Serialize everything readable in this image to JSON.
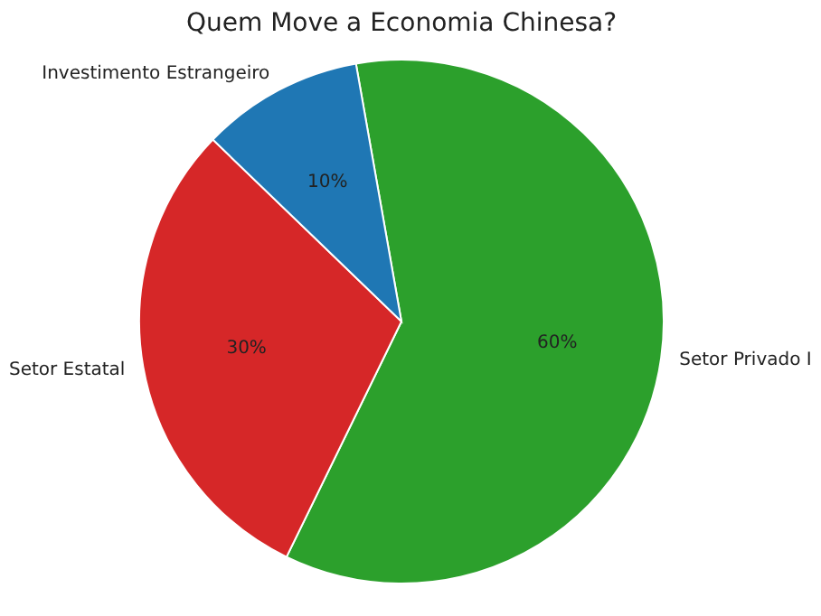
{
  "chart_data": {
    "type": "pie",
    "title": "Quem Move a Economia Chinesa?",
    "categories": [
      "Setor Privado I",
      "Setor Estatal",
      "Investimento Estrangeiro"
    ],
    "values": [
      60,
      30,
      10
    ],
    "colors": [
      "#2ca02c",
      "#d62728",
      "#1f77b4"
    ],
    "value_labels": [
      "60%",
      "30%",
      "10%"
    ]
  }
}
